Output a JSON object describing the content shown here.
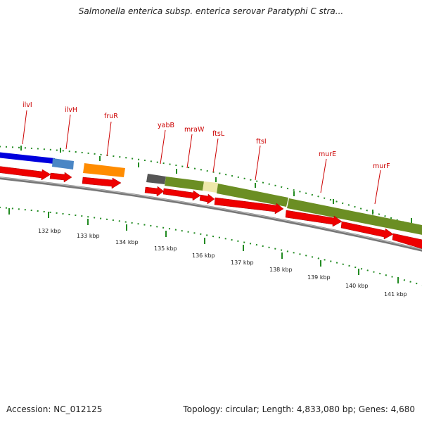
{
  "title": "Salmonella enterica subsp. enterica serovar Paratyphi C stra...",
  "footer": {
    "accession": "Accession: NC_012125",
    "summary": "Topology: circular; Length: 4,833,080 bp; Genes: 4,680"
  },
  "gene_labels": [
    "ilvI",
    "ilvH",
    "fruR",
    "yabB",
    "mraW",
    "ftsL",
    "ftsI",
    "murE",
    "murF"
  ],
  "kbp_labels": [
    "132 kbp",
    "133 kbp",
    "134 kbp",
    "135 kbp",
    "136 kbp",
    "137 kbp",
    "138 kbp",
    "139 kbp",
    "140 kbp",
    "141 kbp"
  ],
  "colors": {
    "cds_arrow": "#ee0000",
    "gene_label": "#cc0000",
    "backbone": "#888888",
    "tick": "#228b22",
    "dark_blue": "#0000dd",
    "steel_blue": "#4a86c5",
    "orange": "#ff8c00",
    "dark_gray": "#555555",
    "olive": "#6b8e23",
    "khaki": "#eee8aa"
  }
}
